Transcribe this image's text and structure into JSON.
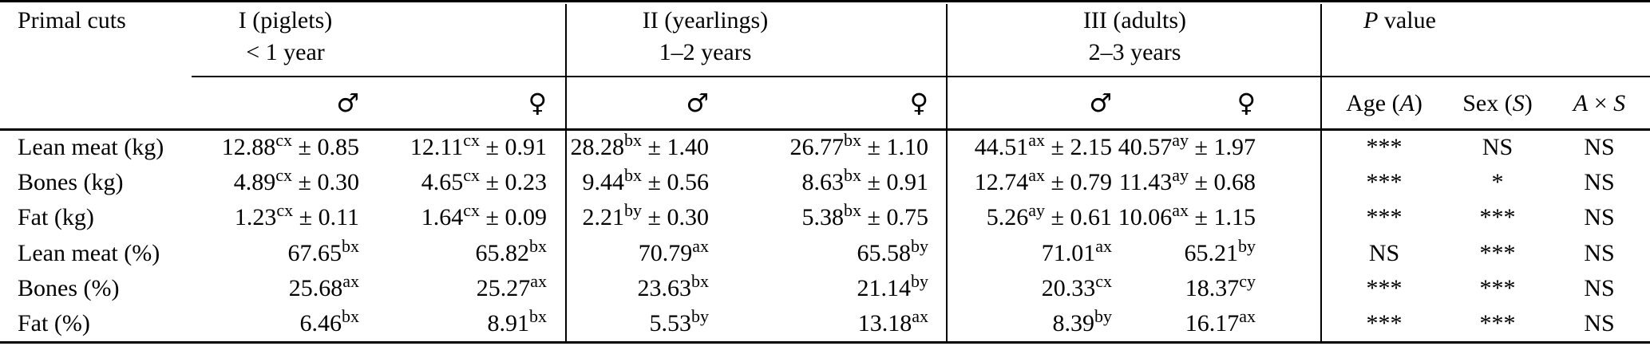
{
  "table": {
    "row_header": "Primal cuts",
    "groups": [
      {
        "label": "I (piglets)",
        "sublabel": "< 1 year"
      },
      {
        "label": "II (yearlings)",
        "sublabel": "1–2 years"
      },
      {
        "label": "III (adults)",
        "sublabel": "2–3 years"
      }
    ],
    "pvalue": {
      "it": "P",
      "rest": " value"
    },
    "sex": {
      "male": "♂",
      "female": "♀"
    },
    "pheader": {
      "age": {
        "pre": "Age (",
        "it": "A",
        "post": ")"
      },
      "sex": {
        "pre": "Sex (",
        "it": "S",
        "post": ")"
      },
      "axs": {
        "a": "A",
        "times": " × ",
        "s": "S"
      }
    },
    "pm_sign": "±",
    "rows": [
      {
        "label": "Lean meat (kg)",
        "cells": [
          {
            "v": "12.88",
            "sup": "cx",
            "se": "0.85"
          },
          {
            "v": "12.11",
            "sup": "cx",
            "se": "0.91"
          },
          {
            "v": "28.28",
            "sup": "bx",
            "se": "1.40"
          },
          {
            "v": "26.77",
            "sup": "bx",
            "se": "1.10"
          },
          {
            "v": "44.51",
            "sup": "ax",
            "se": "2.15"
          },
          {
            "v": "40.57",
            "sup": "ay",
            "se": "1.97"
          }
        ],
        "p": [
          "***",
          "NS",
          "NS"
        ]
      },
      {
        "label": "Bones (kg)",
        "cells": [
          {
            "v": "4.89",
            "sup": "cx",
            "se": "0.30"
          },
          {
            "v": "4.65",
            "sup": "cx",
            "se": "0.23"
          },
          {
            "v": "9.44",
            "sup": "bx",
            "se": "0.56"
          },
          {
            "v": "8.63",
            "sup": "bx",
            "se": "0.91"
          },
          {
            "v": "12.74",
            "sup": "ax",
            "se": "0.79"
          },
          {
            "v": "11.43",
            "sup": "ay",
            "se": "0.68"
          }
        ],
        "p": [
          "***",
          "*",
          "NS"
        ]
      },
      {
        "label": "Fat (kg)",
        "cells": [
          {
            "v": "1.23",
            "sup": "cx",
            "se": "0.11"
          },
          {
            "v": "1.64",
            "sup": "cx",
            "se": "0.09"
          },
          {
            "v": "2.21",
            "sup": "by",
            "se": "0.30"
          },
          {
            "v": "5.38",
            "sup": "bx",
            "se": "0.75"
          },
          {
            "v": "5.26",
            "sup": "ay",
            "se": "0.61"
          },
          {
            "v": "10.06",
            "sup": "ax",
            "se": "1.15"
          }
        ],
        "p": [
          "***",
          "***",
          "NS"
        ]
      },
      {
        "label": "Lean meat (%)",
        "cells": [
          {
            "v": "67.65",
            "sup": "bx"
          },
          {
            "v": "65.82",
            "sup": "bx"
          },
          {
            "v": "70.79",
            "sup": "ax"
          },
          {
            "v": "65.58",
            "sup": "by"
          },
          {
            "v": "71.01",
            "sup": "ax"
          },
          {
            "v": "65.21",
            "sup": "by"
          }
        ],
        "p": [
          "NS",
          "***",
          "NS"
        ]
      },
      {
        "label": "Bones (%)",
        "cells": [
          {
            "v": "25.68",
            "sup": "ax"
          },
          {
            "v": "25.27",
            "sup": "ax"
          },
          {
            "v": "23.63",
            "sup": "bx"
          },
          {
            "v": "21.14",
            "sup": "by"
          },
          {
            "v": "20.33",
            "sup": "cx"
          },
          {
            "v": "18.37",
            "sup": "cy"
          }
        ],
        "p": [
          "***",
          "***",
          "NS"
        ]
      },
      {
        "label": "Fat (%)",
        "cells": [
          {
            "v": "6.46",
            "sup": "bx"
          },
          {
            "v": "8.91",
            "sup": "bx"
          },
          {
            "v": "5.53",
            "sup": "by"
          },
          {
            "v": "13.18",
            "sup": "ax"
          },
          {
            "v": "8.39",
            "sup": "by"
          },
          {
            "v": "16.17",
            "sup": "ax"
          }
        ],
        "p": [
          "***",
          "***",
          "NS"
        ]
      }
    ]
  }
}
